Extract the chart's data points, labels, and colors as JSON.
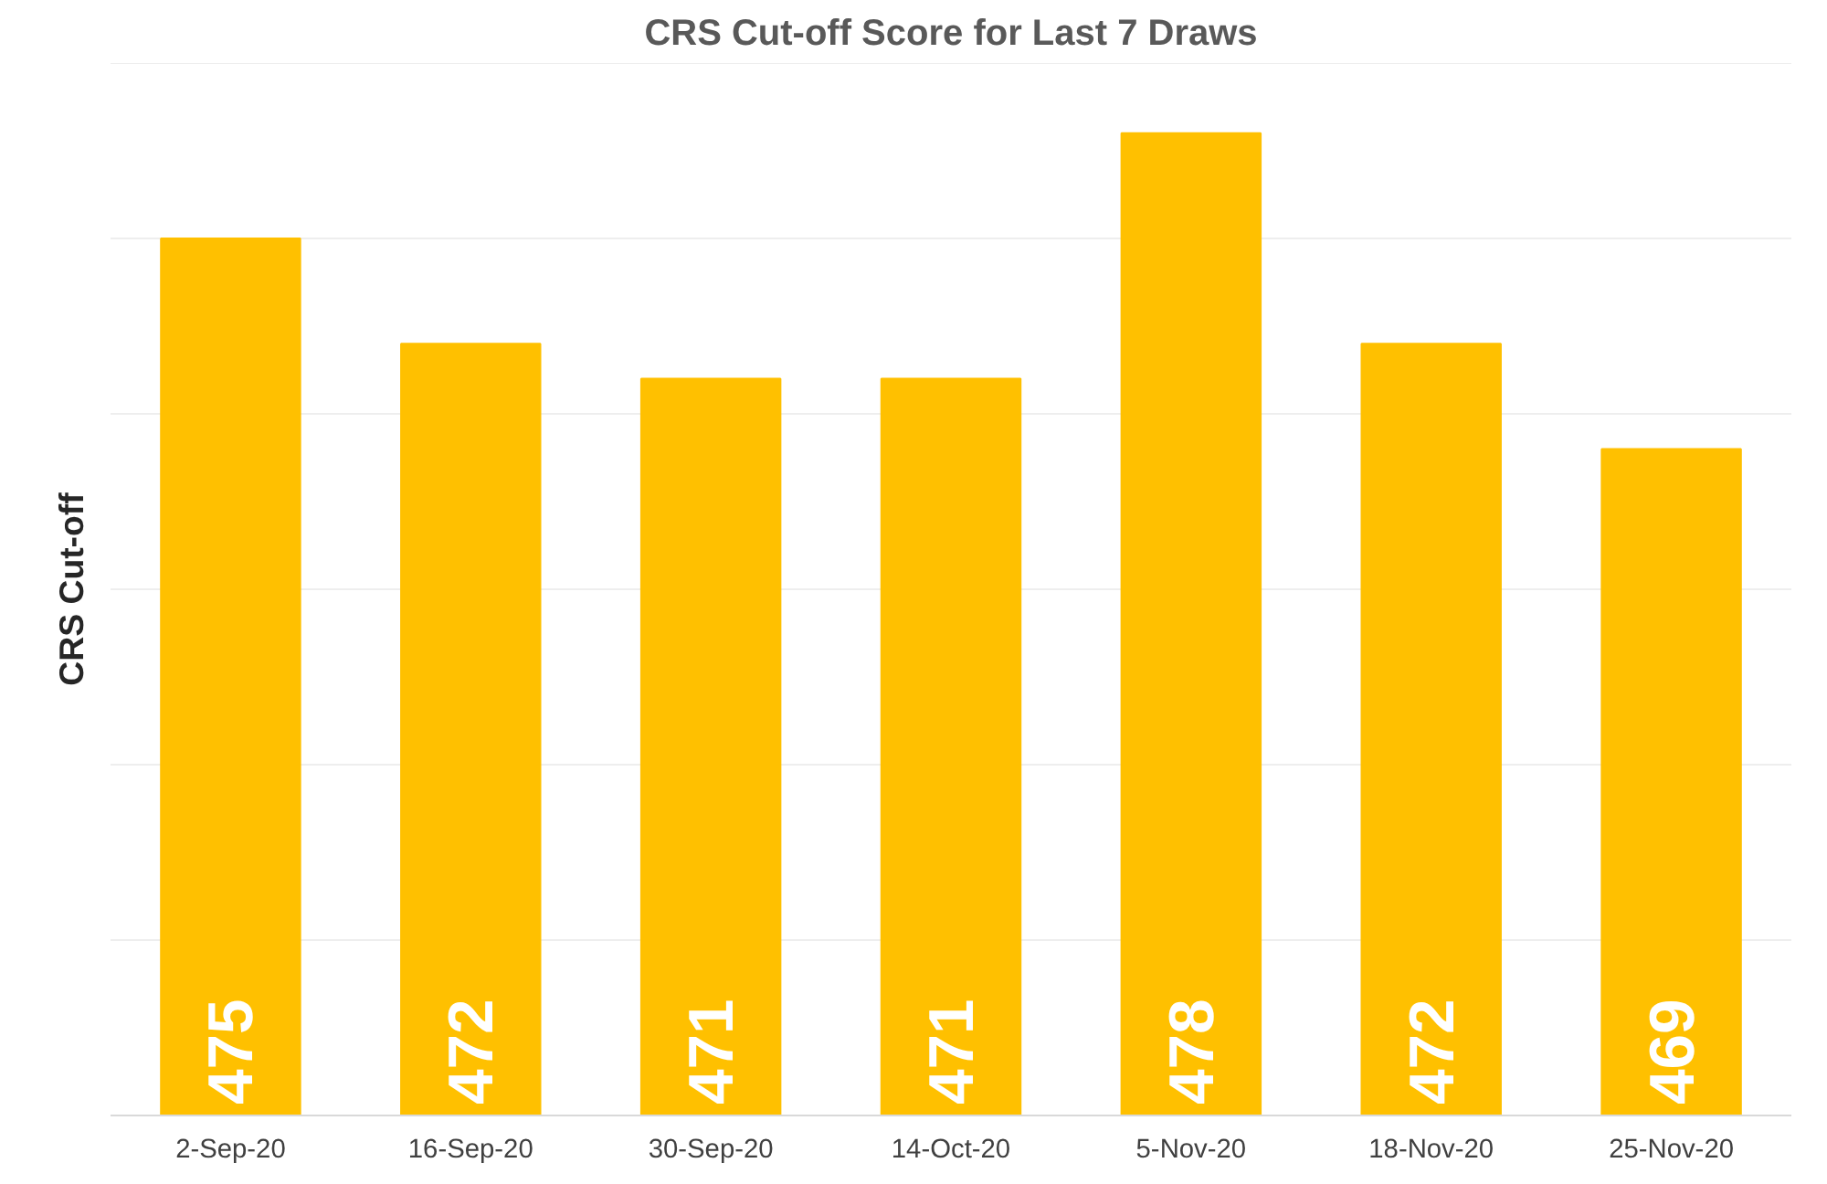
{
  "chart_data": {
    "type": "bar",
    "title": "CRS Cut-off Score for Last 7 Draws",
    "ylabel": "CRS Cut-off",
    "categories": [
      "2-Sep-20",
      "16-Sep-20",
      "30-Sep-20",
      "14-Oct-20",
      "5-Nov-20",
      "18-Nov-20",
      "25-Nov-20"
    ],
    "values": [
      475,
      472,
      471,
      471,
      478,
      472,
      469
    ],
    "color": "#ffc000",
    "ylim": [
      450,
      480
    ],
    "yticks": [
      {
        "value": 450,
        "label": null
      },
      {
        "value": 455,
        "label": null
      },
      {
        "value": 460,
        "label": null
      },
      {
        "value": 465,
        "label": null
      },
      {
        "value": 470,
        "label": null
      },
      {
        "value": 475,
        "label": null
      },
      {
        "value": 480,
        "label": null
      }
    ],
    "grid": "y",
    "tick_labels": "x",
    "data_labels": true
  }
}
